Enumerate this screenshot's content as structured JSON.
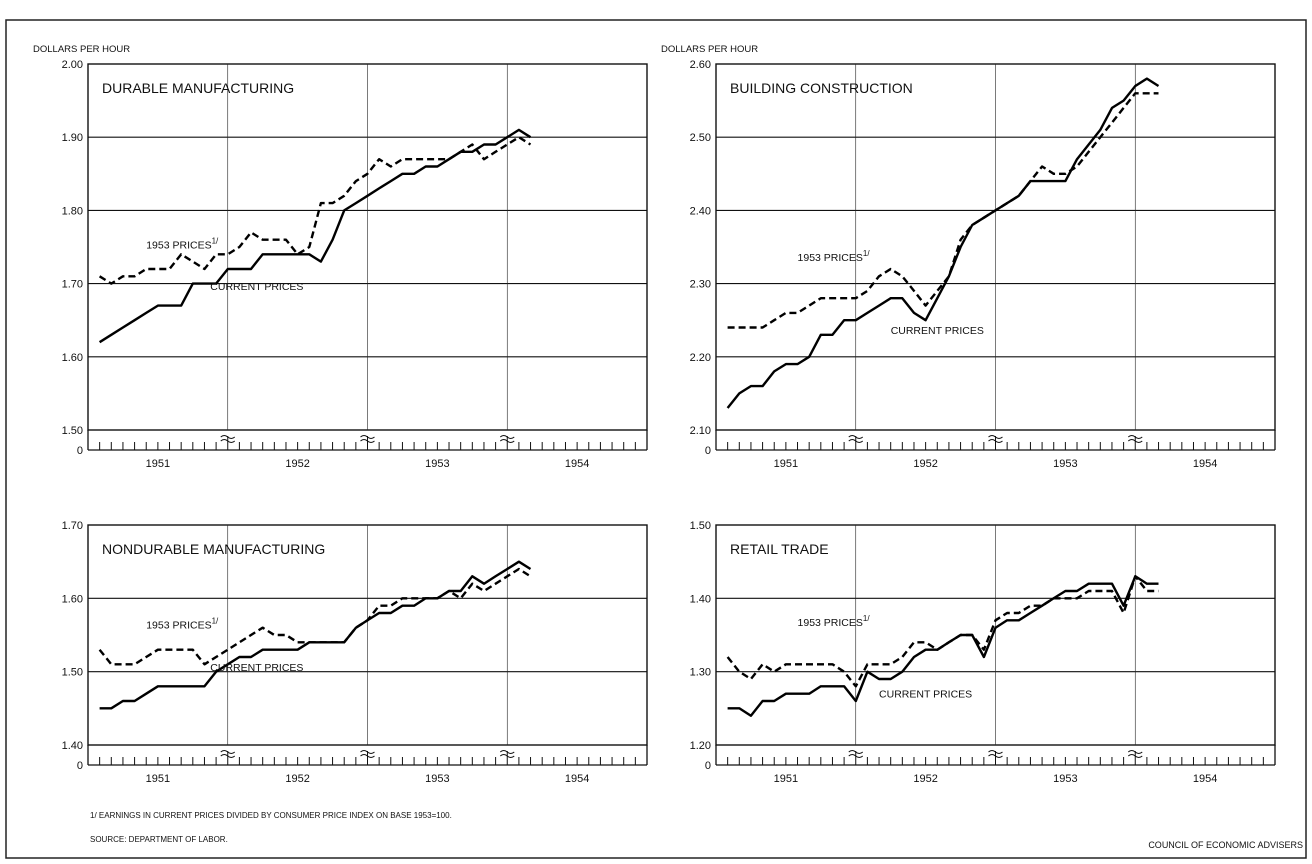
{
  "footnote": "1/ EARNINGS IN CURRENT PRICES DIVIDED BY CONSUMER PRICE INDEX ON BASE 1953=100.",
  "source": "SOURCE: DEPARTMENT OF LABOR.",
  "credit": "COUNCIL OF ECONOMIC ADVISERS",
  "chart_data": [
    {
      "type": "line",
      "title": "DURABLE MANUFACTURING",
      "ylabel": "DOLLARS PER HOUR",
      "ylim": [
        1.5,
        2.0
      ],
      "yticks": [
        "1.50",
        "1.60",
        "1.70",
        "1.80",
        "1.90",
        "2.00"
      ],
      "x_categories": [
        "1951",
        "1952",
        "1953",
        "1954"
      ],
      "series": [
        {
          "name": "CURRENT PRICES",
          "style": "solid",
          "x": [
            1,
            2,
            3,
            4,
            5,
            6,
            7,
            8,
            9,
            10,
            11,
            12,
            13,
            14,
            15,
            16,
            17,
            18,
            19,
            20,
            21,
            22,
            23,
            24,
            25,
            26,
            27,
            28,
            29,
            30,
            31,
            32,
            33,
            34,
            35,
            36,
            37,
            38
          ],
          "y": [
            1.62,
            1.63,
            1.64,
            1.65,
            1.66,
            1.67,
            1.67,
            1.67,
            1.7,
            1.7,
            1.7,
            1.72,
            1.72,
            1.72,
            1.74,
            1.74,
            1.74,
            1.74,
            1.74,
            1.73,
            1.76,
            1.8,
            1.81,
            1.82,
            1.83,
            1.84,
            1.85,
            1.85,
            1.86,
            1.86,
            1.87,
            1.88,
            1.88,
            1.89,
            1.89,
            1.9,
            1.91,
            1.9
          ]
        },
        {
          "name": "1953 PRICES",
          "style": "dashed",
          "x": [
            1,
            2,
            3,
            4,
            5,
            6,
            7,
            8,
            9,
            10,
            11,
            12,
            13,
            14,
            15,
            16,
            17,
            18,
            19,
            20,
            21,
            22,
            23,
            24,
            25,
            26,
            27,
            28,
            29,
            30,
            31,
            32,
            33,
            34,
            35,
            36,
            37,
            38
          ],
          "y": [
            1.71,
            1.7,
            1.71,
            1.71,
            1.72,
            1.72,
            1.72,
            1.74,
            1.73,
            1.72,
            1.74,
            1.74,
            1.75,
            1.77,
            1.76,
            1.76,
            1.76,
            1.74,
            1.75,
            1.81,
            1.81,
            1.82,
            1.84,
            1.85,
            1.87,
            1.86,
            1.87,
            1.87,
            1.87,
            1.87,
            1.87,
            1.88,
            1.89,
            1.87,
            1.88,
            1.89,
            1.9,
            1.89
          ]
        }
      ],
      "annotations": [
        {
          "text": "1953 PRICES",
          "footnote_mark": "1/",
          "x": 5,
          "y": 1.748
        },
        {
          "text": "CURRENT PRICES",
          "x": 10.5,
          "y": 1.691
        }
      ]
    },
    {
      "type": "line",
      "title": "BUILDING CONSTRUCTION",
      "ylabel": "DOLLARS PER HOUR",
      "ylim": [
        2.1,
        2.6
      ],
      "yticks": [
        "2.10",
        "2.20",
        "2.30",
        "2.40",
        "2.50",
        "2.60"
      ],
      "x_categories": [
        "1951",
        "1952",
        "1953",
        "1954"
      ],
      "series": [
        {
          "name": "CURRENT PRICES",
          "style": "solid",
          "x": [
            1,
            2,
            3,
            4,
            5,
            6,
            7,
            8,
            9,
            10,
            11,
            12,
            13,
            14,
            15,
            16,
            17,
            18,
            19,
            20,
            21,
            22,
            23,
            24,
            25,
            26,
            27,
            28,
            29,
            30,
            31,
            32,
            33,
            34,
            35,
            36,
            37,
            38
          ],
          "y": [
            2.13,
            2.15,
            2.16,
            2.16,
            2.18,
            2.19,
            2.19,
            2.2,
            2.23,
            2.23,
            2.25,
            2.25,
            2.26,
            2.27,
            2.28,
            2.28,
            2.26,
            2.25,
            2.28,
            2.31,
            2.35,
            2.38,
            2.39,
            2.4,
            2.41,
            2.42,
            2.44,
            2.44,
            2.44,
            2.44,
            2.47,
            2.49,
            2.51,
            2.54,
            2.55,
            2.57,
            2.58,
            2.57
          ]
        },
        {
          "name": "1953 PRICES",
          "style": "dashed",
          "x": [
            1,
            2,
            3,
            4,
            5,
            6,
            7,
            8,
            9,
            10,
            11,
            12,
            13,
            14,
            15,
            16,
            17,
            18,
            19,
            20,
            21,
            22,
            23,
            24,
            25,
            26,
            27,
            28,
            29,
            30,
            31,
            32,
            33,
            34,
            35,
            36,
            37,
            38
          ],
          "y": [
            2.24,
            2.24,
            2.24,
            2.24,
            2.25,
            2.26,
            2.26,
            2.27,
            2.28,
            2.28,
            2.28,
            2.28,
            2.29,
            2.31,
            2.32,
            2.31,
            2.29,
            2.27,
            2.29,
            2.31,
            2.36,
            2.38,
            2.39,
            2.4,
            2.41,
            2.42,
            2.44,
            2.46,
            2.45,
            2.45,
            2.46,
            2.48,
            2.5,
            2.52,
            2.54,
            2.56,
            2.56,
            2.56
          ]
        }
      ],
      "annotations": [
        {
          "text": "1953 PRICES",
          "footnote_mark": "1/",
          "x": 7,
          "y": 2.331
        },
        {
          "text": "CURRENT PRICES",
          "x": 15,
          "y": 2.231
        }
      ]
    },
    {
      "type": "line",
      "title": "NONDURABLE MANUFACTURING",
      "ylim": [
        1.4,
        1.7
      ],
      "yticks": [
        "1.40",
        "1.50",
        "1.60",
        "1.70"
      ],
      "x_categories": [
        "1951",
        "1952",
        "1953",
        "1954"
      ],
      "series": [
        {
          "name": "CURRENT PRICES",
          "style": "solid",
          "x": [
            1,
            2,
            3,
            4,
            5,
            6,
            7,
            8,
            9,
            10,
            11,
            12,
            13,
            14,
            15,
            16,
            17,
            18,
            19,
            20,
            21,
            22,
            23,
            24,
            25,
            26,
            27,
            28,
            29,
            30,
            31,
            32,
            33,
            34,
            35,
            36,
            37,
            38
          ],
          "y": [
            1.45,
            1.45,
            1.46,
            1.46,
            1.47,
            1.48,
            1.48,
            1.48,
            1.48,
            1.48,
            1.5,
            1.51,
            1.52,
            1.52,
            1.53,
            1.53,
            1.53,
            1.53,
            1.54,
            1.54,
            1.54,
            1.54,
            1.56,
            1.57,
            1.58,
            1.58,
            1.59,
            1.59,
            1.6,
            1.6,
            1.61,
            1.61,
            1.63,
            1.62,
            1.63,
            1.64,
            1.65,
            1.64
          ]
        },
        {
          "name": "1953 PRICES",
          "style": "dashed",
          "x": [
            1,
            2,
            3,
            4,
            5,
            6,
            7,
            8,
            9,
            10,
            11,
            12,
            13,
            14,
            15,
            16,
            17,
            18,
            19,
            20,
            21,
            22,
            23,
            24,
            25,
            26,
            27,
            28,
            29,
            30,
            31,
            32,
            33,
            34,
            35,
            36,
            37,
            38
          ],
          "y": [
            1.53,
            1.51,
            1.51,
            1.51,
            1.52,
            1.53,
            1.53,
            1.53,
            1.53,
            1.51,
            1.52,
            1.53,
            1.54,
            1.55,
            1.56,
            1.55,
            1.55,
            1.54,
            1.54,
            1.54,
            1.54,
            1.54,
            1.56,
            1.57,
            1.59,
            1.59,
            1.6,
            1.6,
            1.6,
            1.6,
            1.61,
            1.6,
            1.62,
            1.61,
            1.62,
            1.63,
            1.64,
            1.63
          ]
        }
      ],
      "annotations": [
        {
          "text": "1953 PRICES",
          "footnote_mark": "1/",
          "x": 5,
          "y": 1.559
        },
        {
          "text": "CURRENT PRICES",
          "x": 10.5,
          "y": 1.501
        }
      ]
    },
    {
      "type": "line",
      "title": "RETAIL TRADE",
      "ylim": [
        1.2,
        1.5
      ],
      "yticks": [
        "1.20",
        "1.30",
        "1.40",
        "1.50"
      ],
      "x_categories": [
        "1951",
        "1952",
        "1953",
        "1954"
      ],
      "series": [
        {
          "name": "CURRENT PRICES",
          "style": "solid",
          "x": [
            1,
            2,
            3,
            4,
            5,
            6,
            7,
            8,
            9,
            10,
            11,
            12,
            13,
            14,
            15,
            16,
            17,
            18,
            19,
            20,
            21,
            22,
            23,
            24,
            25,
            26,
            27,
            28,
            29,
            30,
            31,
            32,
            33,
            34,
            35,
            36,
            37,
            38
          ],
          "y": [
            1.25,
            1.25,
            1.24,
            1.26,
            1.26,
            1.27,
            1.27,
            1.27,
            1.28,
            1.28,
            1.28,
            1.26,
            1.3,
            1.29,
            1.29,
            1.3,
            1.32,
            1.33,
            1.33,
            1.34,
            1.35,
            1.35,
            1.32,
            1.36,
            1.37,
            1.37,
            1.38,
            1.39,
            1.4,
            1.41,
            1.41,
            1.42,
            1.42,
            1.42,
            1.39,
            1.43,
            1.42,
            1.42
          ]
        },
        {
          "name": "1953 PRICES",
          "style": "dashed",
          "x": [
            1,
            2,
            3,
            4,
            5,
            6,
            7,
            8,
            9,
            10,
            11,
            12,
            13,
            14,
            15,
            16,
            17,
            18,
            19,
            20,
            21,
            22,
            23,
            24,
            25,
            26,
            27,
            28,
            29,
            30,
            31,
            32,
            33,
            34,
            35,
            36,
            37,
            38
          ],
          "y": [
            1.32,
            1.3,
            1.29,
            1.31,
            1.3,
            1.31,
            1.31,
            1.31,
            1.31,
            1.31,
            1.3,
            1.28,
            1.31,
            1.31,
            1.31,
            1.32,
            1.34,
            1.34,
            1.33,
            1.34,
            1.35,
            1.35,
            1.33,
            1.37,
            1.38,
            1.38,
            1.39,
            1.39,
            1.4,
            1.4,
            1.4,
            1.41,
            1.41,
            1.41,
            1.38,
            1.43,
            1.41,
            1.41
          ]
        }
      ],
      "annotations": [
        {
          "text": "1953 PRICES",
          "footnote_mark": "1/",
          "x": 7,
          "y": 1.362
        },
        {
          "text": "CURRENT PRICES",
          "x": 14,
          "y": 1.265
        }
      ]
    }
  ]
}
